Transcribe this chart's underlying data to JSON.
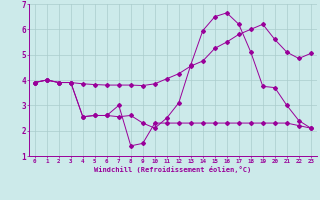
{
  "xlabel": "Windchill (Refroidissement éolien,°C)",
  "background_color": "#cceaea",
  "grid_color": "#aacccc",
  "line_color": "#990099",
  "xlim": [
    -0.5,
    23.5
  ],
  "ylim": [
    1,
    7
  ],
  "yticks": [
    1,
    2,
    3,
    4,
    5,
    6,
    7
  ],
  "xticks": [
    0,
    1,
    2,
    3,
    4,
    5,
    6,
    7,
    8,
    9,
    10,
    11,
    12,
    13,
    14,
    15,
    16,
    17,
    18,
    19,
    20,
    21,
    22,
    23
  ],
  "series1_x": [
    0,
    1,
    2,
    3,
    4,
    5,
    6,
    7,
    8,
    9,
    10,
    11,
    12,
    13,
    14,
    15,
    16,
    17,
    18,
    19,
    20,
    21,
    22,
    23
  ],
  "series1_y": [
    3.9,
    4.0,
    3.9,
    3.9,
    3.85,
    3.82,
    3.8,
    3.8,
    3.8,
    3.78,
    3.85,
    4.05,
    4.25,
    4.55,
    4.75,
    5.25,
    5.5,
    5.8,
    6.0,
    6.2,
    5.6,
    5.1,
    4.85,
    5.05
  ],
  "series2_x": [
    0,
    1,
    2,
    3,
    4,
    5,
    6,
    7,
    8,
    9,
    10,
    11,
    12,
    13,
    14,
    15,
    16,
    17,
    18,
    19,
    20,
    21,
    22,
    23
  ],
  "series2_y": [
    3.9,
    4.0,
    3.9,
    3.9,
    2.55,
    2.6,
    2.6,
    2.55,
    2.6,
    2.3,
    2.1,
    2.5,
    3.1,
    4.6,
    5.95,
    6.5,
    6.65,
    6.2,
    5.1,
    3.75,
    3.7,
    3.0,
    2.4,
    2.1
  ],
  "series3_x": [
    0,
    1,
    2,
    3,
    4,
    5,
    6,
    7,
    8,
    9,
    10,
    11,
    12,
    13,
    14,
    15,
    16,
    17,
    18,
    19,
    20,
    21,
    22,
    23
  ],
  "series3_y": [
    3.9,
    4.0,
    3.9,
    3.9,
    2.55,
    2.6,
    2.6,
    3.0,
    1.4,
    1.5,
    2.3,
    2.3,
    2.3,
    2.3,
    2.3,
    2.3,
    2.3,
    2.3,
    2.3,
    2.3,
    2.3,
    2.3,
    2.2,
    2.1
  ]
}
